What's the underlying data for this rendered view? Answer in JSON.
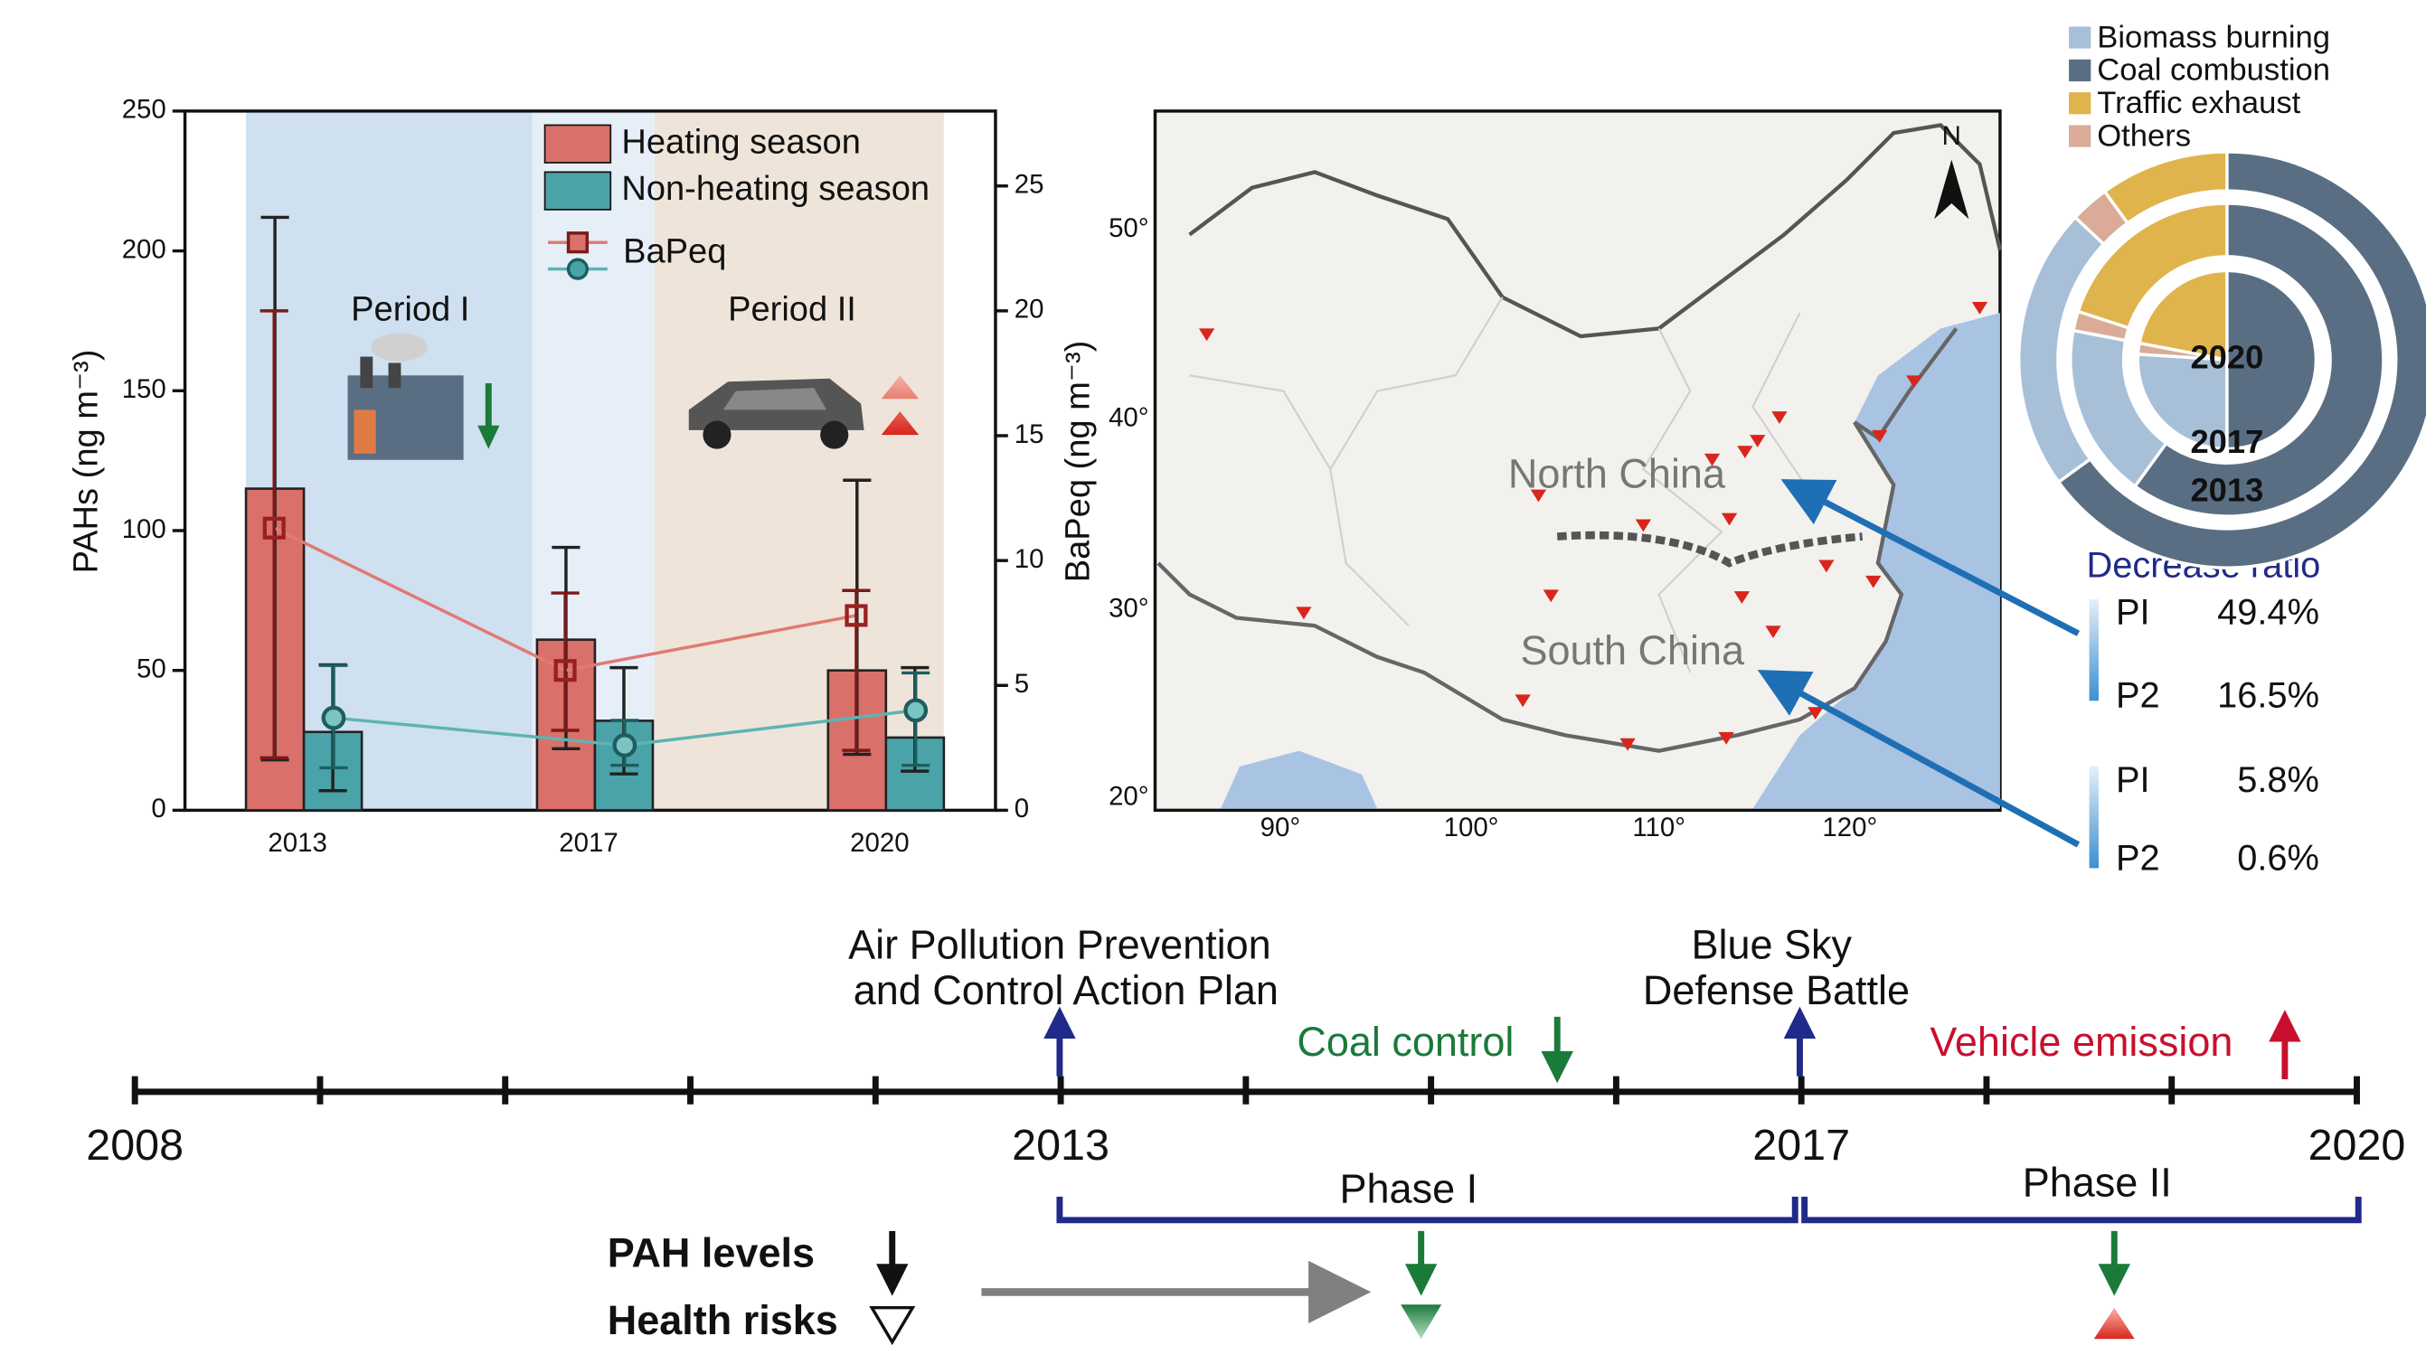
{
  "chart_data": [
    {
      "type": "bar",
      "categories": [
        "2013",
        "2017",
        "2020"
      ],
      "y_label": "PAHs (ng m⁻³)",
      "y2_label": "BaPeq (ng m⁻³)",
      "ylim": [
        0,
        250
      ],
      "yticks": [
        0,
        50,
        100,
        150,
        200,
        250
      ],
      "y2lim": [
        0,
        28
      ],
      "y2ticks": [
        0,
        5,
        10,
        15,
        20,
        25
      ],
      "periods": [
        "Period I",
        "Period II"
      ],
      "series": [
        {
          "name": "Heating season",
          "type": "bar",
          "color": "#d9706a",
          "values": [
            115,
            61,
            50
          ],
          "lower": [
            18,
            22,
            20
          ],
          "upper": [
            212,
            94,
            118
          ]
        },
        {
          "name": "Non-heating season",
          "type": "bar",
          "color": "#4aa3a8",
          "values": [
            28,
            32,
            26
          ],
          "lower": [
            7,
            13,
            14
          ],
          "upper": [
            52,
            51,
            51
          ]
        },
        {
          "name": "BaPeq",
          "type": "line",
          "axis": "y2",
          "color": "#e07a72",
          "values": [
            11.3,
            5.6,
            7.8
          ],
          "lower": [
            2.1,
            3.2,
            2.4
          ],
          "upper": [
            20.0,
            8.7,
            8.8
          ]
        },
        {
          "type": "line",
          "axis": "y2",
          "color": "#5fb3b3",
          "values": [
            3.7,
            2.6,
            4.0
          ],
          "lower": [
            1.7,
            1.8,
            1.8
          ],
          "upper": [
            5.8,
            3.6,
            5.5
          ]
        }
      ]
    },
    {
      "type": "pie",
      "categories": [
        "Biomass burning",
        "Coal combustion",
        "Traffic exhaust",
        "Others"
      ],
      "colors": [
        "#a7c0d8",
        "#5a6e83",
        "#e0b44c",
        "#d9ab98"
      ],
      "rings": [
        {
          "name": "2013",
          "values": [
            22,
            65,
            10,
            3
          ]
        },
        {
          "name": "2017",
          "values": [
            18,
            60,
            20,
            2
          ]
        },
        {
          "name": "2020",
          "values": [
            26,
            50,
            22,
            2
          ]
        }
      ]
    }
  ],
  "map": {
    "xticks": [
      "90°",
      "100°",
      "110°",
      "120°"
    ],
    "yticks": [
      "50°",
      "40°",
      "30°",
      "20°"
    ],
    "regions": [
      "North China",
      "South China"
    ],
    "north": "N"
  },
  "decrease_ratio": {
    "title": "Decrease ratio",
    "rows": [
      [
        "PI",
        "49.4%"
      ],
      [
        "P2",
        "16.5%"
      ],
      [
        "PI",
        "5.8%"
      ],
      [
        "P2",
        "0.6%"
      ]
    ]
  },
  "timeline": {
    "years": [
      2008,
      2013,
      2017,
      2020
    ],
    "events": [
      [
        "Air Pollution Prevention",
        "and Control Action Plan"
      ],
      [
        "Blue Sky",
        "Defense Battle"
      ]
    ],
    "coal": "Coal control",
    "vehicle": "Vehicle emission",
    "phases": [
      "Phase I",
      "Phase II"
    ],
    "legend": [
      "PAH levels",
      "Health risks"
    ]
  }
}
